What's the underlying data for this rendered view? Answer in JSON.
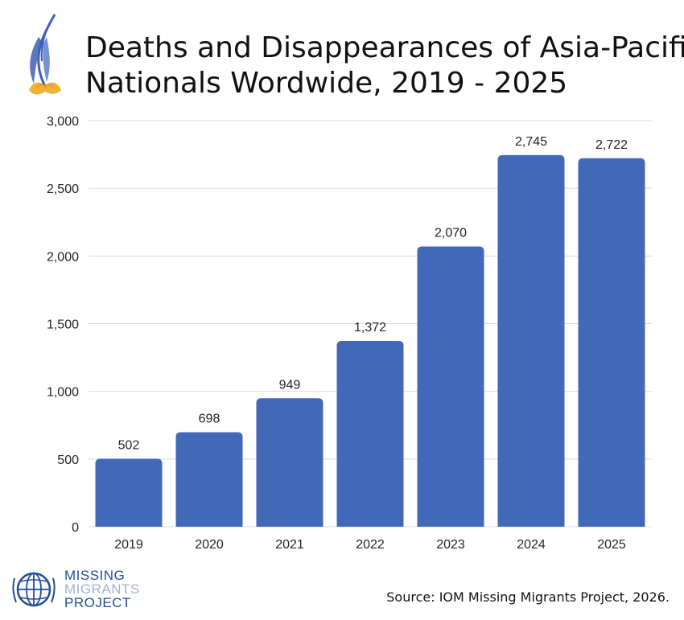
{
  "chart_data": {
    "type": "bar",
    "title_lines": [
      "Deaths and Disappearances of Asia-Pacific",
      "Nationals Wordwide, 2019 - 2025"
    ],
    "categories": [
      "2019",
      "2020",
      "2021",
      "2022",
      "2023",
      "2024",
      "2025"
    ],
    "values": [
      502,
      698,
      949,
      1372,
      2070,
      2745,
      2722
    ],
    "value_labels": [
      "502",
      "698",
      "949",
      "1,372",
      "2,070",
      "2,745",
      "2,722"
    ],
    "y_ticks": [
      0,
      500,
      1000,
      1500,
      2000,
      2500,
      3000
    ],
    "y_tick_labels": [
      "0",
      "500",
      "1,000",
      "1,500",
      "2,000",
      "2,500",
      "3,000"
    ],
    "ylim": [
      0,
      3000
    ],
    "grid": true,
    "bar_color": "#4169b8",
    "gridline_color": "#d9d9d9",
    "xlabel": "",
    "ylabel": ""
  },
  "logo": {
    "icon": "iom-globe-logo",
    "line1": "MISSING",
    "line2": "MIGRANTS",
    "line3": "PROJECT",
    "primary_color": "#1f4e9a",
    "secondary_color": "#9fb3d9"
  },
  "decoration": {
    "icon": "drooping-flower-icon",
    "petal_color": "#f2b134",
    "stem_color": "#3d5fb5"
  },
  "source_note": "Source: IOM Missing Migrants Project, 2026."
}
